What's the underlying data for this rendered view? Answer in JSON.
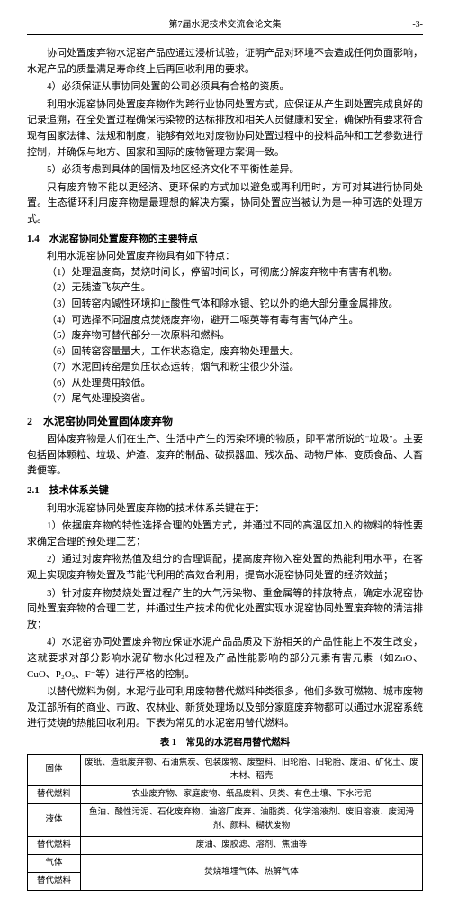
{
  "header": {
    "title": "第7届水泥技术交流会论文集",
    "page": "-3-"
  },
  "p1": "协同处置废弃物水泥窑产品应通过浸析试验，证明产品对环境不会造成任何负面影响，水泥产品的质量满足寿命终止后再回收利用的要求。",
  "p2": "4）必须保证从事协同处置的公司必须具有合格的资质。",
  "p3": "利用水泥窑协同处置废弃物作为跨行业协同处置方式，应保证从产生到处置完成良好的记录追溯，在全处置过程确保污染物的达标排放和相关人员健康和安全，确保所有要求符合现有国家法律、法规和制度，能够有效地对废物协同处置过程中的投料品种和工艺参数进行控制，并确保与地方、国家和国际的废物管理方案调一致。",
  "p4": "5）必须考虑到具体的国情及地区经济文化不平衡性差异。",
  "p5": "只有废弃物不能以更经济、更环保的方式加以避免或再利用时，方可对其进行协同处置。生态循环利用废弃物是最理想的解决方案，协同处置应当被认为是一种可选的处理方式。",
  "s14": "1.4　水泥窑协同处置废弃物的主要特点",
  "s14_intro": "利用水泥窑协同处置废弃物具有如下特点：",
  "items": {
    "i1": "（1）处理温度高，焚烧时间长，停留时间长，可彻底分解废弃物中有害有机物。",
    "i2": "（2）无残渣飞灰产生。",
    "i3": "（3）回转窑内碱性环境抑止酸性气体和除水银、铊以外的绝大部分重金属排放。",
    "i4": "（4）可选择不同温度点焚烧废弃物，避开二噁英等有毒有害气体产生。",
    "i5": "（5）废弃物可替代部分一次原料和燃料。",
    "i6": "（6）回转窑容量量大，工作状态稳定，废弃物处理量大。",
    "i7": "（7）水泥回转窑是负压状态运转，烟气和粉尘很少外溢。",
    "i8": "（6）从处理费用较低。",
    "i9": "（7）尾气处理投资省。"
  },
  "h2_title": "2　水泥窑协同处置固体废弃物",
  "p6": "固体废弃物是人们在生产、生活中产生的污染环境的物质，即平常所说的\"垃圾\"。主要包括固体颗粒、垃圾、炉渣、废弃的制品、破损器皿、残次品、动物尸体、变质食品、人畜粪便等。",
  "s21": "2.1　技术体系关键",
  "p7": "利用水泥窑协同处置废弃物的技术体系关键在于：",
  "p8": "1）依据废弃物的特性选择合理的处置方式，并通过不同的高温区加入的物料的特性要求确定合理的预处理工艺；",
  "p9": "2）通过对废弃物热值及组分的合理调配，提高废弃物入窑处置的热能利用水平，在客观上实现废弃物处置及节能代利用的高效合利用，提高水泥窑协同处置的经济效益；",
  "p10": "3）针对废弃物焚烧处置过程产生的大气污染物、重金属等的排放特点，确定水泥窑协同处置废弃物的合理工艺，并通过生产技术的优化处置实现水泥窑协同处置废弃物的清洁排放；",
  "p11": "4）水泥窑协同处置废弃物应保证水泥产品品质及下游相关的产品性能上不发生改变，这就要求对部分影响水泥矿物水化过程及产品性能影响的部分元素有害元素（如ZnO、CuO、P₂O₅、F⁻等）进行严格的控制。",
  "p12": "以替代燃料为例，水泥行业可利用废物替代燃料种类很多，他们多数可燃物、城市废物及江部所有的商业、市政、农林业、新货处理场以及部分家庭废弃物都可以通过水泥窑系统进行焚烧的热能回收利用。下表为常见的水泥窑用替代燃料。",
  "table": {
    "caption": "表 1　常见的水泥窑用替代燃料",
    "rows": [
      {
        "h": "固体",
        "c": "废纸、造纸废弃物、石油焦炭、包装废物、废塑料、旧轮胎、旧轮胎、废油、矿化土、废木材、稻壳"
      },
      {
        "h": "替代燃料",
        "c": "农业废弃物、家庭废物、纸品废料、贝类、有色土壤、下水污泥"
      },
      {
        "h": "液体",
        "c": "鱼油、酸性污泥、石化废弃物、油溶厂废弃、油脂类、化学溶液剂、废旧溶液、废润滑剂、颜料、糊状废物"
      },
      {
        "h": "替代燃料",
        "c": "废油、废胶滤、溶剂、焦油等"
      },
      {
        "h": "气体",
        "c": ""
      },
      {
        "h": "替代燃料",
        "c": "焚烧堆埋气体、热解气体"
      }
    ]
  }
}
